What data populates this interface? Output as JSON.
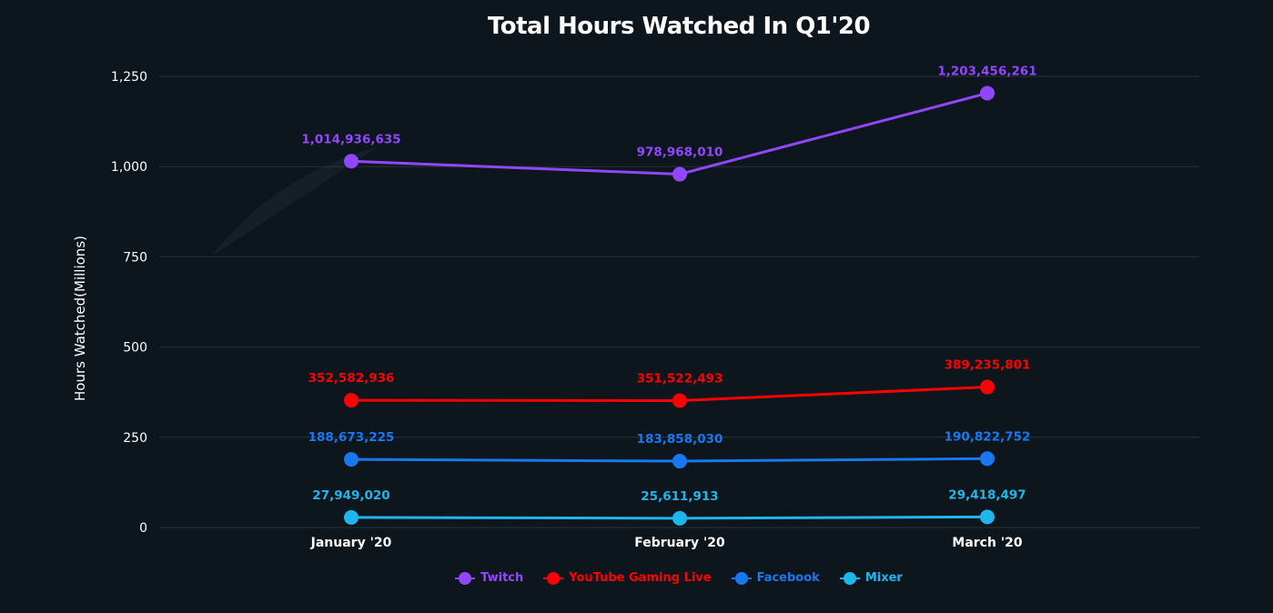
{
  "chart_data": {
    "type": "line",
    "title": "Total Hours Watched In Q1'20",
    "ylabel": "Hours Watched(Millions)",
    "xlabel": "",
    "categories": [
      "January '20",
      "February '20",
      "March '20"
    ],
    "ylim": [
      0,
      1250
    ],
    "yticks": [
      0,
      250,
      500,
      750,
      1000,
      1250
    ],
    "ytick_labels": [
      "0",
      "250",
      "500",
      "750",
      "1,000",
      "1,250"
    ],
    "grid": true,
    "legend_position": "bottom-center",
    "series": [
      {
        "name": "Twitch",
        "color": "#9146ff",
        "values": [
          1014.936635,
          978.96801,
          1203.456261
        ],
        "labels": [
          "1,014,936,635",
          "978,968,010",
          "1,203,456,261"
        ]
      },
      {
        "name": "YouTube Gaming Live",
        "color": "#ff0000",
        "values": [
          352.582936,
          351.522493,
          389.235801
        ],
        "labels": [
          "352,582,936",
          "351,522,493",
          "389,235,801"
        ]
      },
      {
        "name": "Facebook",
        "color": "#1877f2",
        "values": [
          188.673225,
          183.85803,
          190.822752
        ],
        "labels": [
          "188,673,225",
          "183,858,030",
          "190,822,752"
        ]
      },
      {
        "name": "Mixer",
        "color": "#1fb6ec",
        "values": [
          27.94902,
          25.611913,
          29.418497
        ],
        "labels": [
          "27,949,020",
          "25,611,913",
          "29,418,497"
        ]
      }
    ]
  }
}
